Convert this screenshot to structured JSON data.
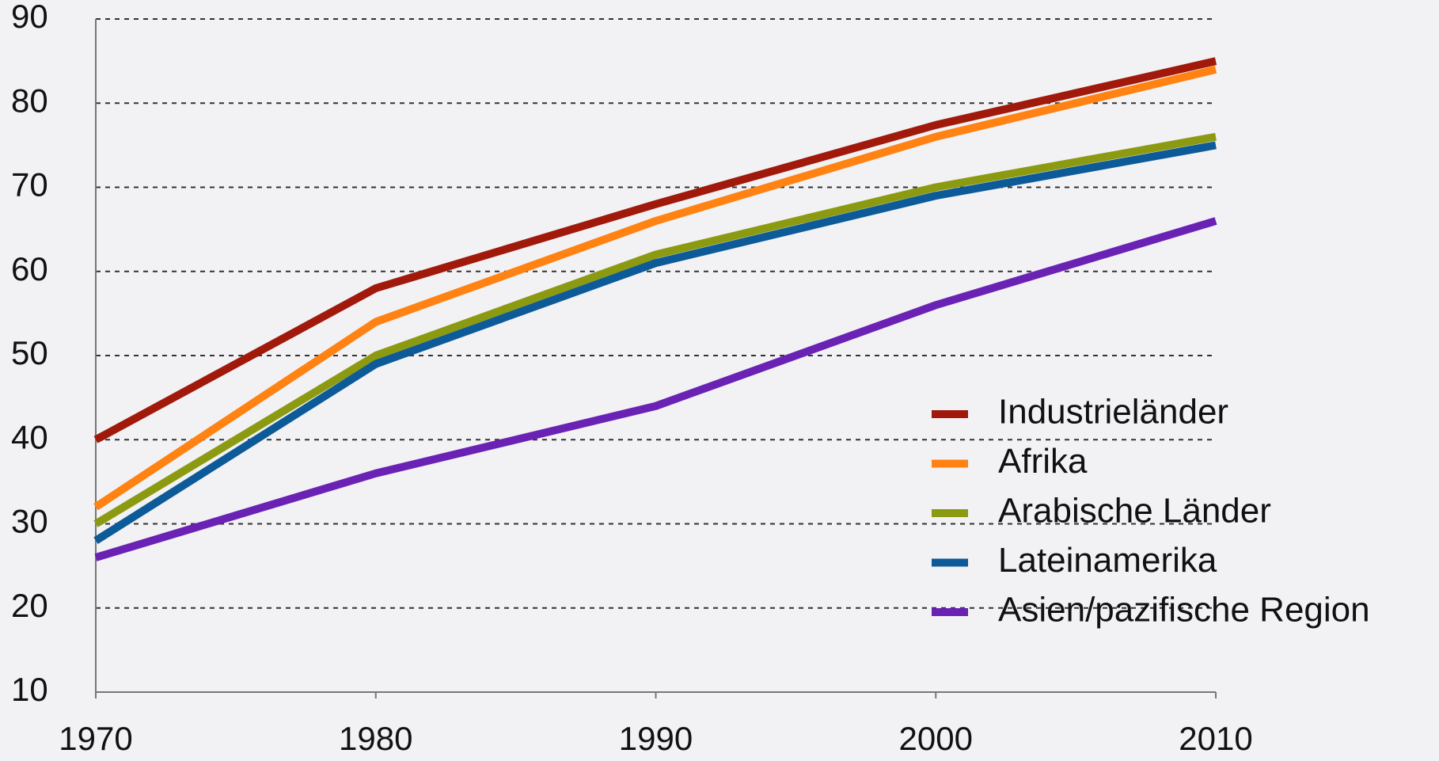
{
  "chart_data": {
    "type": "line",
    "x": [
      1970,
      1980,
      1990,
      2000,
      2010
    ],
    "xlim": [
      1970,
      2010
    ],
    "xticks": [
      1970,
      1980,
      1990,
      2000,
      2010
    ],
    "ylim": [
      10,
      90
    ],
    "yticks": [
      10,
      20,
      30,
      40,
      50,
      60,
      70,
      80,
      90
    ],
    "grid": true,
    "legend": "lower right",
    "series": [
      {
        "name": "Industrieländer",
        "color": "#a0190b",
        "values": [
          40,
          58,
          68,
          77.4,
          85
        ]
      },
      {
        "name": "Afrika",
        "color": "#ff8212",
        "values": [
          32,
          54,
          66,
          76,
          84
        ]
      },
      {
        "name": "Arabische Länder",
        "color": "#8c9a12",
        "values": [
          30,
          50,
          62,
          70,
          76
        ]
      },
      {
        "name": "Lateinamerika",
        "color": "#0d5a99",
        "values": [
          28,
          49,
          61,
          69,
          75
        ]
      },
      {
        "name": "Asien/pazifische Region",
        "color": "#6a22b4",
        "values": [
          26,
          36,
          44,
          56,
          66
        ]
      }
    ]
  }
}
